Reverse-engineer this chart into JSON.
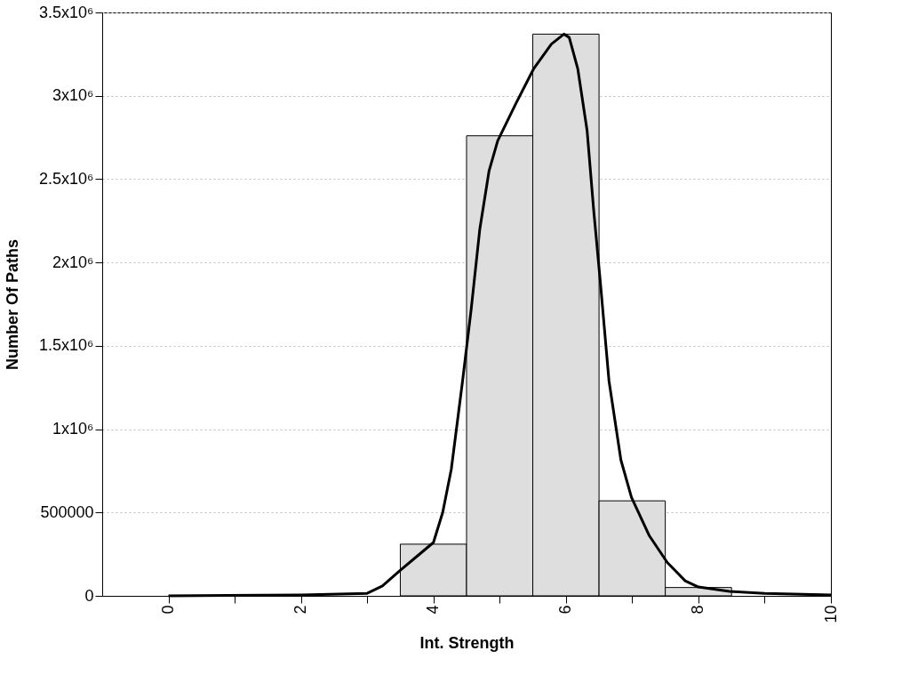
{
  "chart_data": {
    "type": "histogram",
    "xlabel": "Int. Strength",
    "ylabel": "Number Of Paths",
    "bins": [
      3.5,
      4.5,
      5.5,
      6.5,
      7.5,
      8.5
    ],
    "values": [
      310000,
      2760000,
      3370000,
      570000,
      50000
    ],
    "color": "#dedede",
    "series": [
      {
        "type": "line",
        "color": "#000000",
        "x": [
          0,
          2,
          3,
          3.23,
          3.49,
          3.76,
          4.0,
          4.14,
          4.27,
          4.44,
          4.57,
          4.7,
          4.84,
          4.97,
          5.24,
          5.51,
          5.78,
          5.97,
          6.05,
          6.18,
          6.32,
          6.42,
          6.52,
          6.65,
          6.83,
          6.99,
          7.26,
          7.53,
          7.8,
          8.0,
          8.47,
          9.0,
          10
        ],
        "values": [
          0,
          5000,
          15000,
          59000,
          150000,
          240000,
          320000,
          500000,
          760000,
          1290000,
          1720000,
          2200000,
          2550000,
          2730000,
          2950000,
          3160000,
          3310000,
          3370000,
          3350000,
          3160000,
          2790000,
          2310000,
          1880000,
          1290000,
          815000,
          590000,
          360000,
          200000,
          90000,
          53000,
          27000,
          15000,
          5000
        ]
      }
    ],
    "xlim": [
      -1,
      10
    ],
    "xticks": [
      0,
      {
        "value": 1,
        "label": null
      },
      2,
      {
        "value": 3,
        "label": null
      },
      4,
      {
        "value": 5,
        "label": null
      },
      6,
      {
        "value": 7,
        "label": null
      },
      8,
      {
        "value": 9,
        "label": null
      },
      10
    ],
    "ylim": [
      0,
      3500000
    ],
    "yticks": [
      0,
      500000,
      {
        "value": 1000000,
        "label": "1x10⁶"
      },
      {
        "value": 1500000,
        "label": "1.5x10⁶"
      },
      {
        "value": 2000000,
        "label": "2x10⁶"
      },
      {
        "value": 2500000,
        "label": "2.5x10⁶"
      },
      {
        "value": 3000000,
        "label": "3x10⁶"
      },
      {
        "value": 3500000,
        "label": "3.5x10⁶"
      }
    ],
    "grid": "y"
  }
}
